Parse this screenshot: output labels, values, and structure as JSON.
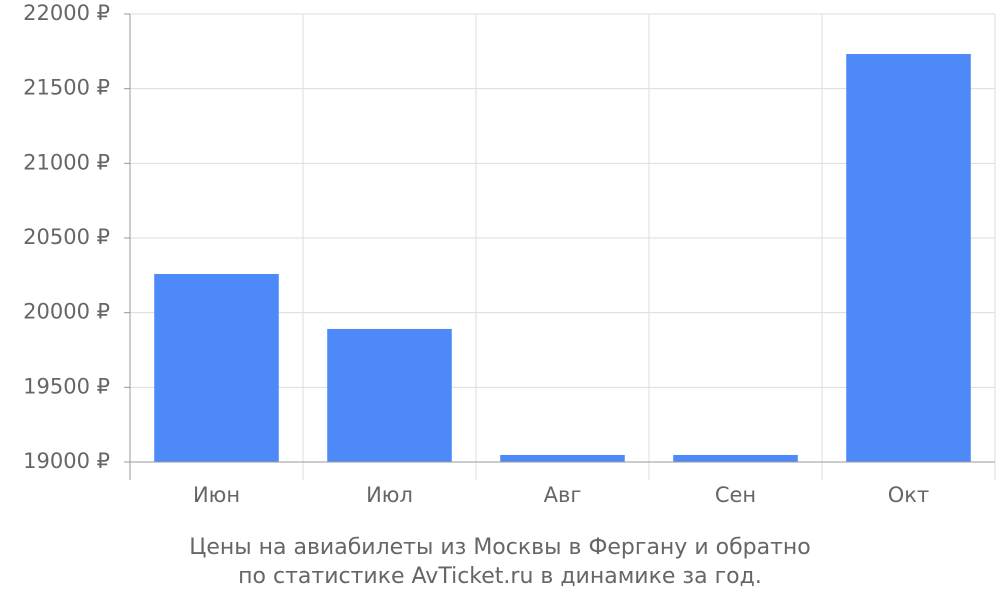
{
  "chart_data": {
    "type": "bar",
    "title": [
      "Цены на авиабилеты из Москвы в Фергану и обратно",
      "по статистике AvTicket.ru в динамике за год."
    ],
    "categories": [
      "Июн",
      "Июл",
      "Авг",
      "Сен",
      "Окт"
    ],
    "values": [
      20259,
      19891,
      19047,
      19047,
      21732
    ],
    "color": "#4d89f9",
    "ylim": [
      19000,
      22000
    ],
    "yticks": [
      {
        "value": 19000,
        "label": "19000 ₽"
      },
      {
        "value": 19500,
        "label": "19500 ₽"
      },
      {
        "value": 20000,
        "label": "20000 ₽"
      },
      {
        "value": 20500,
        "label": "20500 ₽"
      },
      {
        "value": 21000,
        "label": "21000 ₽"
      },
      {
        "value": 21500,
        "label": "21500 ₽"
      },
      {
        "value": 22000,
        "label": "22000 ₽"
      }
    ],
    "grid": true
  }
}
